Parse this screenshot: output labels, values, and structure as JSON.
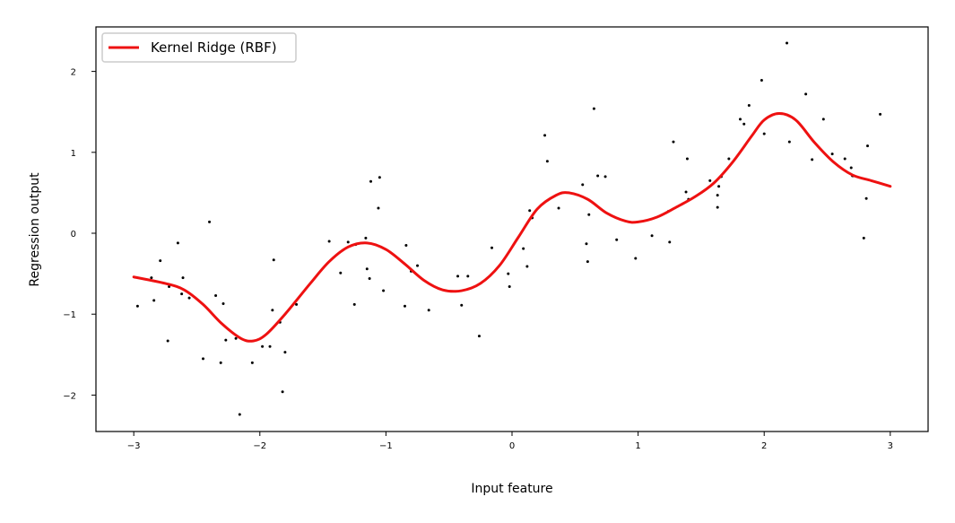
{
  "chart_data": {
    "type": "scatter",
    "title": "",
    "xlabel": "Input feature",
    "ylabel": "Regression output",
    "xlim": [
      -3.3,
      3.3
    ],
    "ylim": [
      -2.45,
      2.55
    ],
    "xticks": [
      -3,
      -2,
      -1,
      0,
      1,
      2,
      3
    ],
    "yticks": [
      -2,
      -1,
      0,
      1,
      2
    ],
    "xtick_labels": [
      "−3",
      "−2",
      "−1",
      "0",
      "1",
      "2",
      "3"
    ],
    "ytick_labels": [
      "−2",
      "−1",
      "0",
      "1",
      "2"
    ],
    "grid": false,
    "legend": {
      "placement": "top-left",
      "entries": [
        "Kernel Ridge (RBF)"
      ]
    },
    "colors": {
      "line": "#ee1111",
      "points": "#000000"
    },
    "series": [
      {
        "name": "Kernel Ridge (RBF)",
        "kind": "line",
        "x": [
          -3.0,
          -2.75,
          -2.6,
          -2.45,
          -2.3,
          -2.15,
          -2.05,
          -1.95,
          -1.8,
          -1.6,
          -1.45,
          -1.3,
          -1.15,
          -1.0,
          -0.85,
          -0.7,
          -0.55,
          -0.4,
          -0.25,
          -0.1,
          0.05,
          0.2,
          0.35,
          0.45,
          0.6,
          0.75,
          0.9,
          1.0,
          1.15,
          1.3,
          1.45,
          1.6,
          1.75,
          1.9,
          2.0,
          2.12,
          2.25,
          2.4,
          2.55,
          2.7,
          2.85,
          3.0
        ],
        "y": [
          -0.54,
          -0.62,
          -0.7,
          -0.88,
          -1.12,
          -1.3,
          -1.33,
          -1.25,
          -1.0,
          -0.62,
          -0.35,
          -0.17,
          -0.12,
          -0.2,
          -0.38,
          -0.58,
          -0.7,
          -0.71,
          -0.62,
          -0.4,
          -0.05,
          0.3,
          0.47,
          0.5,
          0.42,
          0.25,
          0.15,
          0.14,
          0.2,
          0.32,
          0.45,
          0.62,
          0.88,
          1.2,
          1.4,
          1.48,
          1.4,
          1.12,
          0.88,
          0.72,
          0.65,
          0.58
        ]
      },
      {
        "name": "",
        "kind": "points",
        "x": [
          -2.97,
          -2.86,
          -2.84,
          -2.79,
          -2.73,
          -2.72,
          -2.65,
          -2.62,
          -2.61,
          -2.56,
          -2.45,
          -2.4,
          -2.35,
          -2.31,
          -2.29,
          -2.27,
          -2.19,
          -2.16,
          -2.06,
          -1.98,
          -1.92,
          -1.9,
          -1.89,
          -1.84,
          -1.82,
          -1.8,
          -1.71,
          -1.45,
          -1.36,
          -1.3,
          -1.25,
          -1.24,
          -1.16,
          -1.15,
          -1.13,
          -1.12,
          -1.06,
          -1.05,
          -1.02,
          -0.85,
          -0.84,
          -0.8,
          -0.75,
          -0.66,
          -0.43,
          -0.4,
          -0.35,
          -0.26,
          -0.16,
          -0.03,
          -0.02,
          0.09,
          0.12,
          0.14,
          0.16,
          0.26,
          0.28,
          0.37,
          0.56,
          0.59,
          0.6,
          0.61,
          0.65,
          0.68,
          0.74,
          0.83,
          0.98,
          1.11,
          1.24,
          1.25,
          1.28,
          1.38,
          1.39,
          1.4,
          1.57,
          1.63,
          1.63,
          1.64,
          1.66,
          1.72,
          1.81,
          1.84,
          1.88,
          1.98,
          2.0,
          2.18,
          2.2,
          2.33,
          2.38,
          2.47,
          2.54,
          2.64,
          2.69,
          2.7,
          2.71,
          2.79,
          2.81,
          2.82,
          2.92
        ],
        "y": [
          -0.9,
          -0.55,
          -0.83,
          -0.34,
          -1.33,
          -0.66,
          -0.12,
          -0.75,
          -0.55,
          -0.8,
          -1.55,
          0.14,
          -0.77,
          -1.6,
          -0.87,
          -1.32,
          -1.3,
          -2.24,
          -1.6,
          -1.4,
          -1.4,
          -0.95,
          -0.33,
          -1.1,
          -1.96,
          -1.47,
          -0.88,
          -0.1,
          -0.49,
          -0.11,
          -0.88,
          -0.14,
          -0.06,
          -0.44,
          -0.56,
          0.64,
          0.31,
          0.69,
          -0.71,
          -0.9,
          -0.15,
          -0.47,
          -0.4,
          -0.95,
          -0.53,
          -0.89,
          -0.53,
          -1.27,
          -0.18,
          -0.5,
          -0.66,
          -0.19,
          -0.41,
          0.28,
          0.19,
          1.21,
          0.89,
          0.31,
          0.6,
          -0.13,
          -0.35,
          0.23,
          1.54,
          0.71,
          0.7,
          -0.08,
          -0.31,
          -0.03,
          0.27,
          -0.11,
          1.13,
          0.51,
          0.92,
          0.42,
          0.65,
          0.32,
          0.47,
          0.58,
          0.7,
          0.92,
          1.41,
          1.35,
          1.58,
          1.89,
          1.23,
          2.35,
          1.13,
          1.72,
          0.91,
          1.41,
          0.98,
          0.92,
          0.81,
          0.71,
          0.71,
          -0.06,
          0.43,
          1.08,
          1.47
        ]
      }
    ]
  }
}
